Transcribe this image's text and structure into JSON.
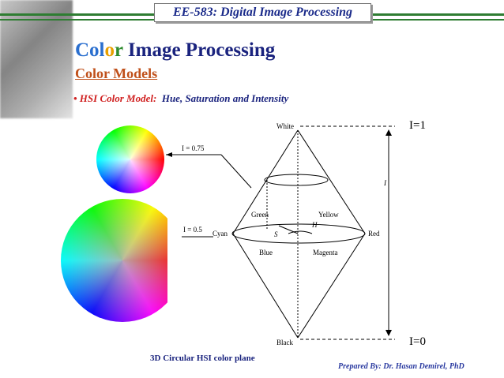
{
  "header": {
    "course": "EE-583: Digital Image Processing"
  },
  "title": {
    "parts": [
      "Col",
      "o",
      "r",
      " Image Processing"
    ]
  },
  "subtitle": "Color Models",
  "bullet": {
    "label": "• HSI Color Model:",
    "text": "Hue, Saturation and Intensity"
  },
  "diagram": {
    "labels": {
      "white": "White",
      "black": "Black",
      "green": "Green",
      "yellow": "Yellow",
      "cyan": "Cyan",
      "red": "Red",
      "blue": "Blue",
      "magenta": "Magenta",
      "i_075": "I = 0.75",
      "i_05": "I = 0.5",
      "h": "H",
      "s": "S",
      "i": "I",
      "i_top": "I=1",
      "i_bottom": "I=0"
    },
    "caption": "3D Circular HSI color plane"
  },
  "footer": {
    "prefix": "Prepared By:",
    "author": "Dr. Hasan Demirel, PhD"
  }
}
